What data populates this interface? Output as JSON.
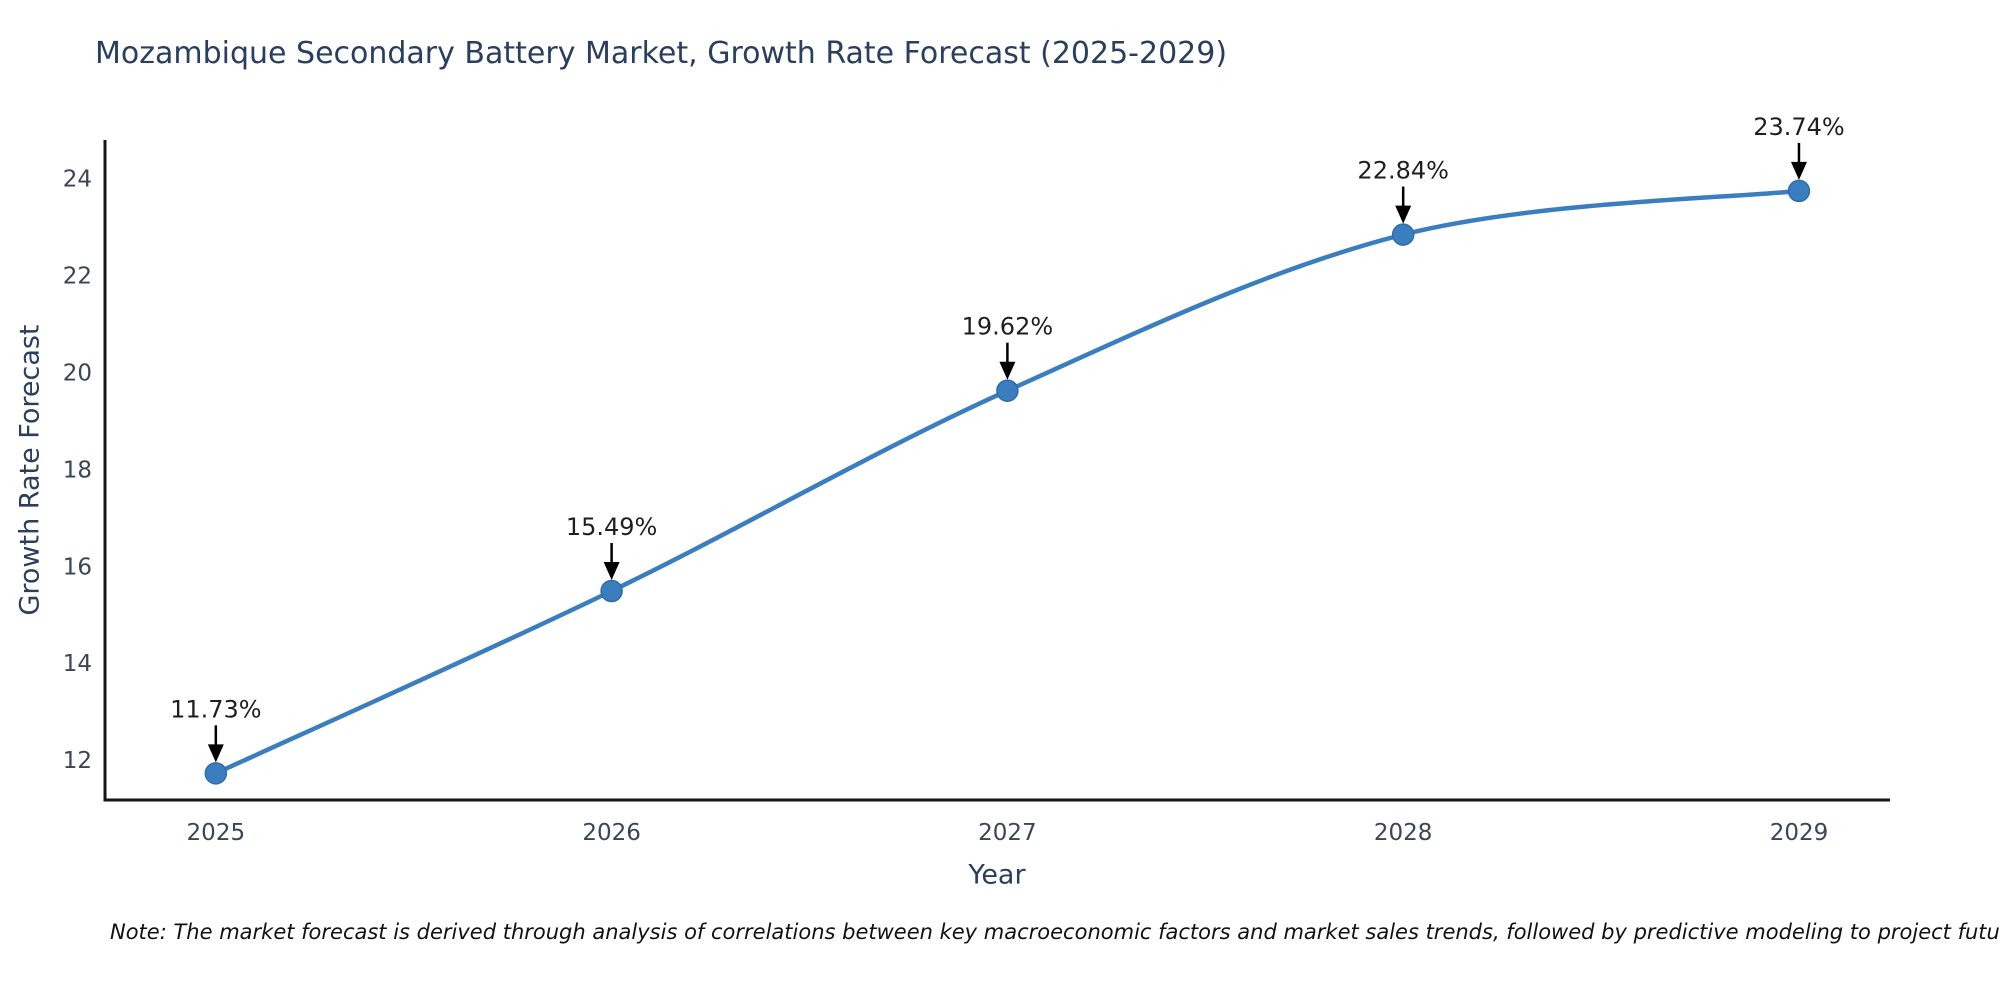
{
  "figure": {
    "title": "Mozambique Secondary Battery Market, Growth Rate Forecast (2025-2029)",
    "note": "Note: The market forecast is derived through analysis of correlations between key macroeconomic factors and market sales trends, followed by predictive modeling to project future sales"
  },
  "chart_data": {
    "type": "line",
    "title": "Mozambique Secondary Battery Market, Growth Rate Forecast (2025-2029)",
    "xlabel": "Year",
    "ylabel": "Growth Rate Forecast",
    "x": [
      2025,
      2026,
      2027,
      2028,
      2029
    ],
    "series": [
      {
        "name": "Growth Rate Forecast",
        "values": [
          11.73,
          15.49,
          19.62,
          22.84,
          23.74
        ],
        "point_labels": [
          "11.73%",
          "15.49%",
          "19.62%",
          "22.84%",
          "23.74%"
        ]
      }
    ],
    "line_shape": "spline",
    "markers": true,
    "grid": false,
    "legend_position": "none",
    "xticks": [
      2025,
      2026,
      2027,
      2028,
      2029
    ],
    "yticks": [
      12,
      14,
      16,
      18,
      20,
      22,
      24
    ],
    "xlim": [
      2024.72,
      2029.23
    ],
    "ylim": [
      11.18,
      24.79
    ],
    "colors": {
      "line": "#3a7ebf",
      "marker_fill": "#3a7ebf",
      "marker_edge": "#2f6da8",
      "axis_line": "#161616",
      "tick_text": "#3b4556",
      "title_text": "#2a3f5f",
      "annotation_text": "#1f1f1f",
      "annotation_arrow": "#000000",
      "background": "#ffffff"
    }
  }
}
